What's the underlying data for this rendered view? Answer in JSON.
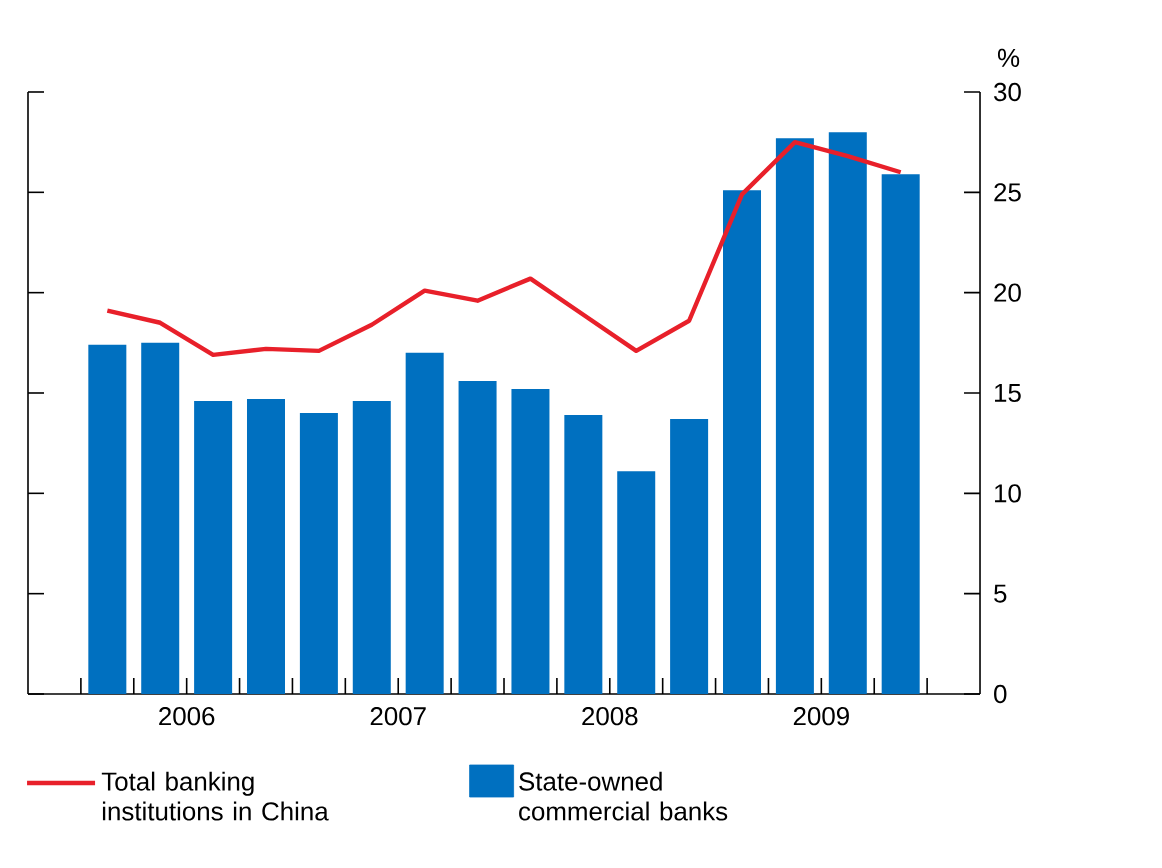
{
  "chart_data": {
    "type": "bar",
    "ylabel": "%",
    "x": [
      2006.125,
      2006.375,
      2006.625,
      2006.875,
      2007.125,
      2007.375,
      2007.625,
      2007.875,
      2008.125,
      2008.375,
      2008.625,
      2008.875,
      2009.125,
      2009.375,
      2009.625,
      2009.875
    ],
    "xlim": [
      2005.75,
      2010.25
    ],
    "xticks": [
      {
        "value": 2006,
        "label": null
      },
      {
        "value": 2006.25,
        "label": null
      },
      {
        "value": 2006.5,
        "label": "2006"
      },
      {
        "value": 2006.75,
        "label": null
      },
      {
        "value": 2007,
        "label": null
      },
      {
        "value": 2007.25,
        "label": null
      },
      {
        "value": 2007.5,
        "label": "2007"
      },
      {
        "value": 2007.75,
        "label": null
      },
      {
        "value": 2008,
        "label": null
      },
      {
        "value": 2008.25,
        "label": null
      },
      {
        "value": 2008.5,
        "label": "2008"
      },
      {
        "value": 2008.75,
        "label": null
      },
      {
        "value": 2009,
        "label": null
      },
      {
        "value": 2009.25,
        "label": null
      },
      {
        "value": 2009.5,
        "label": "2009"
      },
      {
        "value": 2009.75,
        "label": null
      },
      {
        "value": 2010,
        "label": null
      }
    ],
    "ylim": [
      0,
      30
    ],
    "yticks": [
      0,
      5,
      10,
      15,
      20,
      25,
      30
    ],
    "legend": "bottom",
    "series": [
      {
        "name": "State-owned commercial banks",
        "color": "#0070c0",
        "values": [
          17.4,
          17.5,
          14.6,
          14.7,
          14.0,
          14.6,
          17.0,
          15.6,
          15.2,
          13.9,
          11.1,
          13.7,
          25.1,
          27.7,
          28.0,
          25.9
        ]
      },
      {
        "name": "Total banking institutions in China",
        "type": "line",
        "color": "#e8202a",
        "values": [
          19.1,
          18.5,
          16.9,
          17.2,
          17.1,
          18.4,
          20.1,
          19.6,
          20.7,
          18.9,
          17.1,
          18.6,
          24.9,
          27.5,
          26.8,
          26.0
        ]
      }
    ]
  }
}
